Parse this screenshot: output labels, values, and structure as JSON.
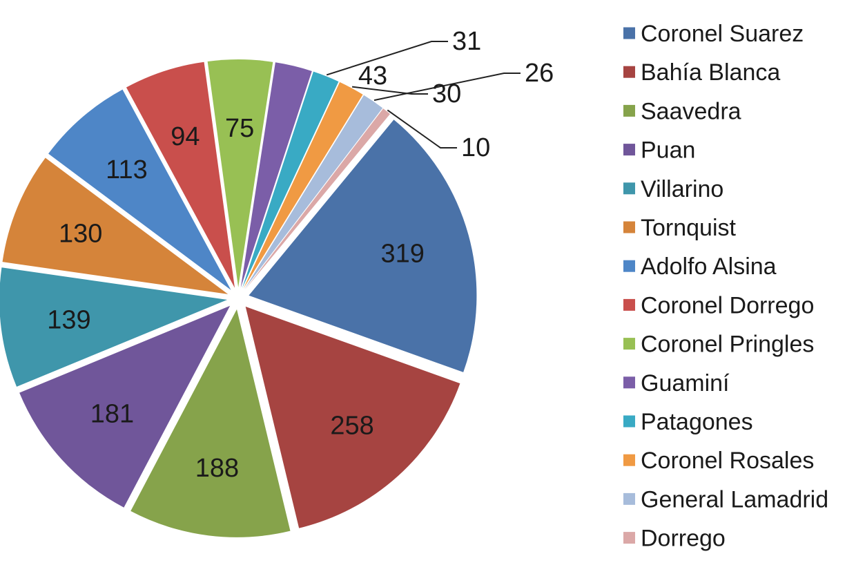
{
  "chart_data": {
    "type": "pie",
    "title": "",
    "categories": [
      "Coronel Suarez",
      "Bahía Blanca",
      "Saavedra",
      "Puan",
      "Villarino",
      "Tornquist",
      "Adolfo Alsina",
      "Coronel Dorrego",
      "Coronel Pringles",
      "Guaminí",
      "Patagones",
      "Coronel Rosales",
      "General Lamadrid",
      "Dorrego"
    ],
    "values": [
      319,
      258,
      188,
      181,
      139,
      130,
      113,
      94,
      75,
      43,
      31,
      30,
      26,
      10
    ],
    "colors": [
      "#4a72a8",
      "#a64441",
      "#86a34b",
      "#70569a",
      "#3f96ab",
      "#d5843a",
      "#4e86c7",
      "#c94f4c",
      "#98c054",
      "#7b5ea8",
      "#39aac4",
      "#f09a43",
      "#a7bcdb",
      "#dba8a7"
    ],
    "exploded": true,
    "legend_position": "right",
    "data_labels": true
  }
}
